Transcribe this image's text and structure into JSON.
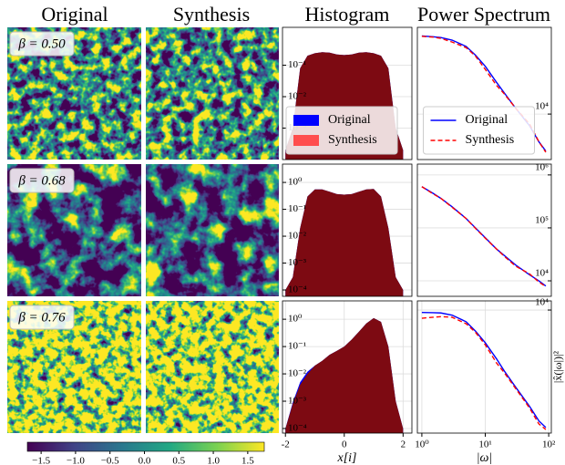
{
  "column_titles": [
    "Original",
    "Synthesis",
    "Histogram",
    "Power Spectrum"
  ],
  "images": [
    {
      "label": "β = 0.50"
    },
    {
      "label": "β = 0.68"
    },
    {
      "label": "β = 0.76"
    }
  ],
  "chart_data": [
    {
      "type": "area",
      "ylog": true,
      "grid": true,
      "legend": "lower center",
      "xlim": [
        -2.1,
        2.3
      ],
      "ylim": [
        0.0001,
        1.6
      ],
      "yticks": [
        {
          "value": 0.1,
          "label": "10⁻¹"
        },
        {
          "value": 0.01,
          "label": "10⁻²"
        },
        {
          "value": 0.001,
          "label": "10⁻³"
        }
      ],
      "x": [
        -2,
        -1.75,
        -1.5,
        -1.25,
        -1,
        -0.75,
        -0.5,
        -0.25,
        0,
        0.25,
        0.5,
        0.75,
        1,
        1.25,
        1.5,
        1.75,
        2
      ],
      "series": [
        {
          "name": "Original",
          "color": "#0000ff",
          "fill": "#0000ff",
          "values": [
            0.0002,
            0.001,
            0.08,
            0.2,
            0.24,
            0.26,
            0.25,
            0.22,
            0.21,
            0.22,
            0.25,
            0.26,
            0.24,
            0.2,
            0.08,
            0.001,
            0.0002
          ]
        },
        {
          "name": "Synthesis",
          "color": "#ff4d4d",
          "fill": "#7d0a12",
          "values": [
            0.0002,
            0.001,
            0.08,
            0.2,
            0.24,
            0.26,
            0.25,
            0.22,
            0.21,
            0.22,
            0.25,
            0.26,
            0.24,
            0.2,
            0.08,
            0.001,
            0.0002
          ]
        }
      ]
    },
    {
      "type": "area",
      "ylog": true,
      "grid": true,
      "xlim": [
        -2.1,
        2.3
      ],
      "ylim": [
        5.8e-05,
        4.8
      ],
      "yticks": [
        {
          "value": 1,
          "label": "10⁰"
        },
        {
          "value": 0.1,
          "label": "10⁻¹"
        },
        {
          "value": 0.01,
          "label": "10⁻²"
        },
        {
          "value": 0.001,
          "label": "10⁻³"
        },
        {
          "value": 0.0001,
          "label": "10⁻⁴"
        }
      ],
      "x": [
        -2,
        -1.75,
        -1.5,
        -1.25,
        -1,
        -0.75,
        -0.5,
        -0.25,
        0,
        0.25,
        0.5,
        0.75,
        1,
        1.25,
        1.5,
        1.75,
        2
      ],
      "series": [
        {
          "name": "Original",
          "color": "#0000ff",
          "fill": "#0000ff",
          "values": [
            0.0001,
            0.0003,
            0.02,
            0.3,
            0.55,
            0.55,
            0.45,
            0.37,
            0.35,
            0.37,
            0.45,
            0.55,
            0.57,
            0.3,
            0.02,
            0.0003,
            0.0001
          ]
        },
        {
          "name": "Synthesis",
          "color": "#ff4d4d",
          "fill": "#7d0a12",
          "values": [
            0.0001,
            0.0003,
            0.02,
            0.3,
            0.55,
            0.55,
            0.45,
            0.37,
            0.35,
            0.37,
            0.45,
            0.55,
            0.57,
            0.3,
            0.02,
            0.0003,
            0.0001
          ]
        }
      ]
    },
    {
      "type": "area",
      "ylog": true,
      "grid": true,
      "xlabel": "x[i]",
      "xlim": [
        -2.1,
        2.3
      ],
      "ylim": [
        6.8e-05,
        4.7
      ],
      "xticks": [
        -2,
        0,
        2
      ],
      "yticks": [
        {
          "value": 1,
          "label": "10⁰"
        },
        {
          "value": 0.1,
          "label": "10⁻¹"
        },
        {
          "value": 0.01,
          "label": "10⁻²"
        },
        {
          "value": 0.001,
          "label": "10⁻³"
        },
        {
          "value": 0.0001,
          "label": "10⁻⁴"
        }
      ],
      "x": [
        -2,
        -1.75,
        -1.5,
        -1.25,
        -1,
        -0.75,
        -0.5,
        -0.25,
        0,
        0.25,
        0.5,
        0.75,
        1,
        1.25,
        1.5,
        1.75,
        2
      ],
      "series": [
        {
          "name": "Original",
          "color": "#0000ff",
          "fill": "#0000ff",
          "values": [
            0.0001,
            0.0009,
            0.005,
            0.012,
            0.02,
            0.03,
            0.05,
            0.07,
            0.1,
            0.18,
            0.35,
            0.7,
            1.1,
            0.8,
            0.1,
            0.001,
            0.0001
          ]
        },
        {
          "name": "Synthesis",
          "color": "#ff4d4d",
          "fill": "#7d0a12",
          "values": [
            0.0001,
            0.0008,
            0.004,
            0.01,
            0.02,
            0.03,
            0.05,
            0.07,
            0.1,
            0.18,
            0.35,
            0.7,
            1.1,
            0.8,
            0.1,
            0.001,
            0.0001
          ]
        }
      ]
    },
    {
      "type": "line",
      "xlog": true,
      "ylog": true,
      "grid": true,
      "legend": "lower center",
      "xlim": [
        0.85,
        110
      ],
      "ylim": [
        1380,
        436000
      ],
      "yticks": [
        {
          "value": 10000,
          "label": "10⁴"
        }
      ],
      "x": [
        1,
        1.5,
        2,
        3,
        5,
        7,
        10,
        15,
        20,
        30,
        50,
        70,
        90
      ],
      "series": [
        {
          "name": "Original",
          "color": "#0000ff",
          "style": "solid",
          "values": [
            300000,
            290000,
            280000,
            250000,
            190000,
            130000,
            80000,
            40000,
            25000,
            13000,
            6000,
            3000,
            2000
          ]
        },
        {
          "name": "Synthesis",
          "color": "#ff0000",
          "style": "dashed",
          "values": [
            295000,
            285000,
            270000,
            230000,
            180000,
            125000,
            70000,
            35000,
            24000,
            13000,
            6500,
            3000,
            1900
          ]
        }
      ]
    },
    {
      "type": "line",
      "xlog": true,
      "ylog": true,
      "grid": true,
      "xlim": [
        0.85,
        110
      ],
      "ylim": [
        5100,
        1600000
      ],
      "yticks": [
        {
          "value": 1000000,
          "label": "10⁶"
        },
        {
          "value": 100000,
          "label": "10⁵"
        },
        {
          "value": 10000,
          "label": "10⁴"
        }
      ],
      "x": [
        1,
        1.5,
        2,
        3,
        5,
        7,
        10,
        15,
        20,
        30,
        50,
        70,
        90
      ],
      "series": [
        {
          "name": "Original",
          "color": "#0000ff",
          "style": "solid",
          "values": [
            600000,
            450000,
            360000,
            250000,
            150000,
            100000,
            65000,
            40000,
            30000,
            20000,
            13000,
            10000,
            8000
          ]
        },
        {
          "name": "Synthesis",
          "color": "#ff0000",
          "style": "dashed",
          "values": [
            600000,
            440000,
            360000,
            245000,
            150000,
            98000,
            64000,
            40000,
            29000,
            19000,
            13500,
            9500,
            7800
          ]
        }
      ]
    },
    {
      "type": "line",
      "xlog": true,
      "ylog": true,
      "grid": true,
      "xlabel": "|ω|",
      "ylabel": "|x̂(|ω|)|²",
      "xlim": [
        0.85,
        110
      ],
      "ylim": [
        47,
        14900
      ],
      "xticks": [
        {
          "value": 1,
          "label": "10⁰"
        },
        {
          "value": 10,
          "label": "10¹"
        },
        {
          "value": 100,
          "label": "10²"
        }
      ],
      "yticks": [
        {
          "value": 10000,
          "label": "10⁴"
        }
      ],
      "x": [
        1,
        1.5,
        2,
        3,
        5,
        7,
        10,
        15,
        20,
        30,
        50,
        70,
        90
      ],
      "series": [
        {
          "name": "Original",
          "color": "#0000ff",
          "style": "solid",
          "values": [
            9000,
            8900,
            8800,
            8000,
            6000,
            4000,
            2400,
            1200,
            700,
            350,
            150,
            80,
            60
          ]
        },
        {
          "name": "Synthesis",
          "color": "#ff0000",
          "style": "dashed",
          "values": [
            7000,
            7300,
            7500,
            7300,
            5500,
            3800,
            2200,
            1000,
            650,
            330,
            140,
            70,
            55
          ]
        }
      ]
    },
    {
      "type": "colorbar",
      "colormap": "viridis",
      "xlim": [
        -1.7,
        1.74
      ],
      "xticks": [
        {
          "value": -1.5,
          "label": "−1.5"
        },
        {
          "value": -1,
          "label": "−1.0"
        },
        {
          "value": -0.5,
          "label": "−0.5"
        },
        {
          "value": 0,
          "label": "0.0"
        },
        {
          "value": 0.5,
          "label": "0.5"
        },
        {
          "value": 1,
          "label": "1.0"
        },
        {
          "value": 1.5,
          "label": "1.5"
        }
      ]
    }
  ]
}
